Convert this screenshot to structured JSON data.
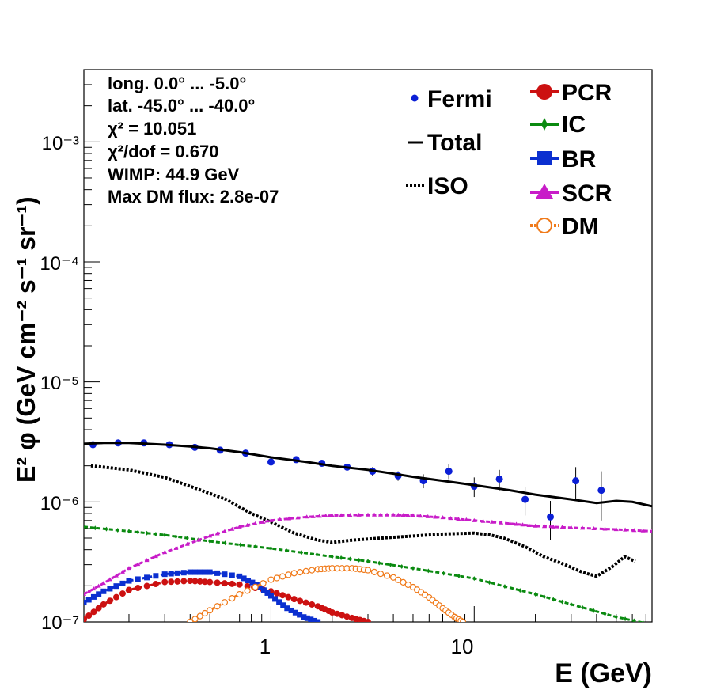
{
  "chart_data": {
    "type": "line",
    "xlabel": "E (GeV)",
    "ylabel": "E² φ (GeV cm⁻² s⁻¹ sr⁻¹)",
    "xscale": "log",
    "yscale": "log",
    "xlim": [
      0.12,
      75
    ],
    "ylim": [
      1e-07,
      0.004
    ],
    "x_tick_labels": [
      "1",
      "10"
    ],
    "y_tick_labels": [
      "10⁻⁷",
      "10⁻⁶",
      "10⁻⁵",
      "10⁻⁴",
      "10⁻³"
    ],
    "annotations": [
      "long. 0.0° ... -5.0°",
      "lat. -45.0° ... -40.0°",
      "χ² = 10.051",
      "χ²/dof = 0.670",
      "WIMP: 44.9 GeV",
      "Max DM flux: 2.8e-07"
    ],
    "legend_left": [
      "Fermi",
      "Total",
      "ISO"
    ],
    "legend_right": [
      "PCR",
      "IC",
      "BR",
      "SCR",
      "DM"
    ],
    "legend_placement": "top-right",
    "grid": false,
    "series": [
      {
        "name": "Fermi",
        "style": "points-errorbars",
        "color": "#0b1fd6",
        "points": [
          {
            "x": 0.133,
            "y": 3e-06,
            "err": [
              1e-07,
              1e-07
            ]
          },
          {
            "x": 0.177,
            "y": 3.1e-06,
            "err": [
              1e-07,
              1e-07
            ]
          },
          {
            "x": 0.237,
            "y": 3.1e-06,
            "err": [
              1e-07,
              1e-07
            ]
          },
          {
            "x": 0.316,
            "y": 3e-06,
            "err": [
              1e-07,
              1e-07
            ]
          },
          {
            "x": 0.422,
            "y": 2.85e-06,
            "err": [
              1e-07,
              1e-07
            ]
          },
          {
            "x": 0.562,
            "y": 2.7e-06,
            "err": [
              1e-07,
              1e-07
            ]
          },
          {
            "x": 0.75,
            "y": 2.55e-06,
            "err": [
              1e-07,
              1e-07
            ]
          },
          {
            "x": 1.0,
            "y": 2.15e-06,
            "err": [
              1e-07,
              1e-07
            ]
          },
          {
            "x": 1.33,
            "y": 2.25e-06,
            "err": [
              1e-07,
              1e-07
            ]
          },
          {
            "x": 1.78,
            "y": 2.1e-06,
            "err": [
              1e-07,
              1e-07
            ]
          },
          {
            "x": 2.37,
            "y": 1.95e-06,
            "err": [
              1.2e-07,
              1.2e-07
            ]
          },
          {
            "x": 3.16,
            "y": 1.8e-06,
            "err": [
              1.5e-07,
              1.5e-07
            ]
          },
          {
            "x": 4.22,
            "y": 1.65e-06,
            "err": [
              1.5e-07,
              1.5e-07
            ]
          },
          {
            "x": 5.62,
            "y": 1.5e-06,
            "err": [
              2e-07,
              2e-07
            ]
          },
          {
            "x": 7.5,
            "y": 1.8e-06,
            "err": [
              2.5e-07,
              2.5e-07
            ]
          },
          {
            "x": 10.0,
            "y": 1.35e-06,
            "err": [
              2.5e-07,
              2.5e-07
            ]
          },
          {
            "x": 13.3,
            "y": 1.55e-06,
            "err": [
              3e-07,
              3e-07
            ]
          },
          {
            "x": 17.8,
            "y": 1.05e-06,
            "err": [
              2.8e-07,
              2.8e-07
            ]
          },
          {
            "x": 23.7,
            "y": 7.5e-07,
            "err": [
              2.7e-07,
              2.7e-07
            ]
          },
          {
            "x": 31.6,
            "y": 1.5e-06,
            "err": [
              4.5e-07,
              4.5e-07
            ]
          },
          {
            "x": 42.2,
            "y": 1.25e-06,
            "err": [
              5.5e-07,
              5.5e-07
            ]
          }
        ]
      },
      {
        "name": "Total",
        "style": "solid",
        "color": "#000000",
        "x": [
          0.12,
          0.15,
          0.2,
          0.3,
          0.4,
          0.5,
          0.7,
          1.0,
          1.5,
          2.0,
          3.0,
          4.0,
          5.0,
          7.0,
          10.0,
          15.0,
          20.0,
          30.0,
          40.0,
          50.0,
          60.0,
          75.0
        ],
        "y": [
          3.05e-06,
          3.1e-06,
          3.1e-06,
          3e-06,
          2.9e-06,
          2.8e-06,
          2.6e-06,
          2.35e-06,
          2.15e-06,
          2e-06,
          1.85e-06,
          1.72e-06,
          1.62e-06,
          1.5e-06,
          1.38e-06,
          1.25e-06,
          1.15e-06,
          1.05e-06,
          9.8e-07,
          1.02e-06,
          1e-06,
          9.2e-07
        ]
      },
      {
        "name": "ISO",
        "style": "dotted",
        "color": "#000000",
        "x": [
          0.13,
          0.2,
          0.3,
          0.4,
          0.6,
          0.8,
          1.0,
          1.3,
          1.7,
          2.0,
          2.5,
          3.5,
          5.0,
          7.0,
          10.0,
          12.0,
          14.0,
          18.0,
          22.0,
          28.0,
          34.0,
          40.0,
          48.0,
          55.0,
          62.0
        ],
        "y": [
          2e-06,
          1.85e-06,
          1.6e-06,
          1.35e-06,
          1.05e-06,
          8e-07,
          6.8e-07,
          5.5e-07,
          4.8e-07,
          4.6e-07,
          4.8e-07,
          5e-07,
          5.2e-07,
          5.4e-07,
          5.5e-07,
          5.3e-07,
          5e-07,
          4.2e-07,
          3.5e-07,
          3e-07,
          2.6e-07,
          2.4e-07,
          2.9e-07,
          3.5e-07,
          3.2e-07
        ]
      },
      {
        "name": "PCR",
        "style": "dash-markers",
        "color": "#cc1111",
        "x": [
          0.12,
          0.15,
          0.2,
          0.3,
          0.4,
          0.5,
          0.7,
          1.0,
          1.3,
          1.7,
          2.0,
          2.5,
          3.0
        ],
        "y": [
          1.05e-07,
          1.4e-07,
          1.85e-07,
          2.15e-07,
          2.2e-07,
          2.15e-07,
          2.05e-07,
          1.8e-07,
          1.55e-07,
          1.35e-07,
          1.2e-07,
          1.08e-07,
          1e-07
        ]
      },
      {
        "name": "IC",
        "style": "dash-markers",
        "color": "#0a8a10",
        "x": [
          0.12,
          0.2,
          0.3,
          0.5,
          1.0,
          2.0,
          3.0,
          5.0,
          10.0,
          20.0,
          30.0,
          50.0,
          75.0
        ],
        "y": [
          6.2e-07,
          5.7e-07,
          5.3e-07,
          4.7e-07,
          4.1e-07,
          3.5e-07,
          3.2e-07,
          2.8e-07,
          2.3e-07,
          1.7e-07,
          1.4e-07,
          1.1e-07,
          9.5e-08
        ]
      },
      {
        "name": "BR",
        "style": "dash-markers",
        "color": "#0b2fd0",
        "x": [
          0.12,
          0.15,
          0.2,
          0.3,
          0.4,
          0.5,
          0.7,
          0.85,
          1.0,
          1.2,
          1.45,
          1.7
        ],
        "y": [
          1.45e-07,
          1.8e-07,
          2.2e-07,
          2.5e-07,
          2.6e-07,
          2.6e-07,
          2.4e-07,
          2.05e-07,
          1.65e-07,
          1.3e-07,
          1.1e-07,
          1e-07
        ]
      },
      {
        "name": "SCR",
        "style": "dash-markers",
        "color": "#c81cc8",
        "x": [
          0.12,
          0.15,
          0.2,
          0.3,
          0.5,
          0.7,
          1.0,
          1.5,
          2.0,
          3.0,
          4.0,
          5.0,
          7.0,
          10.0,
          15.0,
          20.0,
          30.0,
          50.0,
          75.0
        ],
        "y": [
          1.7e-07,
          2.1e-07,
          2.8e-07,
          3.8e-07,
          5.2e-07,
          6.2e-07,
          7e-07,
          7.5e-07,
          7.7e-07,
          7.8e-07,
          7.8e-07,
          7.7e-07,
          7.4e-07,
          7e-07,
          6.6e-07,
          6.3e-07,
          6.1e-07,
          5.9e-07,
          5.7e-07
        ]
      },
      {
        "name": "DM",
        "style": "dash-markers",
        "color": "#f07a1a",
        "x": [
          0.4,
          0.5,
          0.7,
          1.0,
          1.3,
          1.7,
          2.0,
          2.5,
          3.0,
          4.0,
          5.0,
          6.0,
          7.0,
          8.0,
          8.8
        ],
        "y": [
          1e-07,
          1.25e-07,
          1.7e-07,
          2.25e-07,
          2.55e-07,
          2.75e-07,
          2.8e-07,
          2.8e-07,
          2.7e-07,
          2.35e-07,
          1.95e-07,
          1.6e-07,
          1.3e-07,
          1.1e-07,
          1e-07
        ]
      }
    ]
  }
}
